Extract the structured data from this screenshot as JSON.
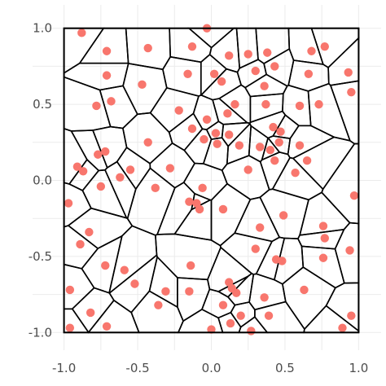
{
  "chart_data": {
    "type": "scatter",
    "title": "",
    "xlabel": "",
    "ylabel": "",
    "xlim": [
      -1.02,
      1.02
    ],
    "ylim": [
      -1.02,
      1.02
    ],
    "x_ticks": [
      -1.0,
      -0.5,
      0.0,
      0.5,
      1.0
    ],
    "y_ticks": [
      -1.0,
      -0.5,
      0.0,
      0.5,
      1.0
    ],
    "x_tick_labels": [
      "-1.0",
      "-0.5",
      "0.0",
      "0.5",
      "1.0"
    ],
    "y_tick_labels": [
      "-1.0",
      "-0.5",
      "0.0",
      "0.5",
      "1.0"
    ],
    "grid": true,
    "overlay": "voronoi tessellation of the points, clipped to the square [-1, 1]",
    "colors": {
      "points": "#F8766D",
      "edges": "#000000",
      "grid": "#ebebeb",
      "background": "#ffffff"
    },
    "points": [
      {
        "x": -0.03,
        "y": 1.0
      },
      {
        "x": -0.88,
        "y": 0.97
      },
      {
        "x": -0.71,
        "y": 0.85
      },
      {
        "x": -0.43,
        "y": 0.87
      },
      {
        "x": -0.13,
        "y": 0.88
      },
      {
        "x": 0.12,
        "y": 0.82
      },
      {
        "x": 0.25,
        "y": 0.83
      },
      {
        "x": 0.38,
        "y": 0.84
      },
      {
        "x": 0.68,
        "y": 0.85
      },
      {
        "x": 0.77,
        "y": 0.88
      },
      {
        "x": -0.71,
        "y": 0.69
      },
      {
        "x": -0.47,
        "y": 0.63
      },
      {
        "x": -0.16,
        "y": 0.7
      },
      {
        "x": 0.02,
        "y": 0.7
      },
      {
        "x": 0.07,
        "y": 0.65
      },
      {
        "x": 0.3,
        "y": 0.72
      },
      {
        "x": 0.43,
        "y": 0.75
      },
      {
        "x": 0.66,
        "y": 0.7
      },
      {
        "x": 0.93,
        "y": 0.71
      },
      {
        "x": 0.36,
        "y": 0.62
      },
      {
        "x": -0.78,
        "y": 0.49
      },
      {
        "x": -0.68,
        "y": 0.52
      },
      {
        "x": -0.22,
        "y": 0.46
      },
      {
        "x": -0.13,
        "y": 0.34
      },
      {
        "x": -0.05,
        "y": 0.27
      },
      {
        "x": 0.03,
        "y": 0.31
      },
      {
        "x": 0.12,
        "y": 0.3
      },
      {
        "x": 0.11,
        "y": 0.44
      },
      {
        "x": 0.16,
        "y": 0.5
      },
      {
        "x": 0.37,
        "y": 0.5
      },
      {
        "x": 0.42,
        "y": 0.35
      },
      {
        "x": 0.47,
        "y": 0.32
      },
      {
        "x": 0.6,
        "y": 0.49
      },
      {
        "x": 0.73,
        "y": 0.5
      },
      {
        "x": 0.95,
        "y": 0.58
      },
      {
        "x": -0.43,
        "y": 0.25
      },
      {
        "x": -0.03,
        "y": 0.4
      },
      {
        "x": -0.77,
        "y": 0.17
      },
      {
        "x": -0.72,
        "y": 0.19
      },
      {
        "x": -0.91,
        "y": 0.09
      },
      {
        "x": -0.87,
        "y": 0.06
      },
      {
        "x": -0.55,
        "y": 0.07
      },
      {
        "x": -0.62,
        "y": 0.02
      },
      {
        "x": -0.28,
        "y": 0.08
      },
      {
        "x": 0.04,
        "y": 0.24
      },
      {
        "x": 0.19,
        "y": 0.23
      },
      {
        "x": 0.33,
        "y": 0.22
      },
      {
        "x": 0.46,
        "y": 0.25
      },
      {
        "x": 0.4,
        "y": 0.2
      },
      {
        "x": 0.6,
        "y": 0.23
      },
      {
        "x": 0.65,
        "y": 0.13
      },
      {
        "x": 0.57,
        "y": 0.05
      },
      {
        "x": 0.43,
        "y": 0.13
      },
      {
        "x": 0.25,
        "y": 0.07
      },
      {
        "x": -0.06,
        "y": -0.05
      },
      {
        "x": -0.38,
        "y": -0.05
      },
      {
        "x": -0.15,
        "y": -0.14
      },
      {
        "x": -0.1,
        "y": -0.15
      },
      {
        "x": -0.08,
        "y": -0.19
      },
      {
        "x": 0.08,
        "y": -0.19
      },
      {
        "x": -0.75,
        "y": -0.04
      },
      {
        "x": -0.97,
        "y": -0.15
      },
      {
        "x": 0.49,
        "y": -0.23
      },
      {
        "x": 0.33,
        "y": -0.31
      },
      {
        "x": 0.76,
        "y": -0.3
      },
      {
        "x": 0.97,
        "y": -0.1
      },
      {
        "x": -0.83,
        "y": -0.34
      },
      {
        "x": -0.89,
        "y": -0.42
      },
      {
        "x": 0.3,
        "y": -0.45
      },
      {
        "x": 0.44,
        "y": -0.52
      },
      {
        "x": 0.48,
        "y": -0.53
      },
      {
        "x": 0.77,
        "y": -0.38
      },
      {
        "x": 0.76,
        "y": -0.51
      },
      {
        "x": 0.94,
        "y": -0.46
      },
      {
        "x": -0.72,
        "y": -0.56
      },
      {
        "x": -0.59,
        "y": -0.59
      },
      {
        "x": -0.14,
        "y": -0.56
      },
      {
        "x": -0.52,
        "y": -0.68
      },
      {
        "x": -0.31,
        "y": -0.73
      },
      {
        "x": -0.15,
        "y": -0.73
      },
      {
        "x": 0.12,
        "y": -0.67
      },
      {
        "x": 0.14,
        "y": -0.71
      },
      {
        "x": 0.17,
        "y": -0.74
      },
      {
        "x": 0.36,
        "y": -0.77
      },
      {
        "x": -0.96,
        "y": -0.72
      },
      {
        "x": -0.36,
        "y": -0.82
      },
      {
        "x": 0.08,
        "y": -0.82
      },
      {
        "x": 0.2,
        "y": -0.89
      },
      {
        "x": 0.39,
        "y": -0.89
      },
      {
        "x": 0.63,
        "y": -0.72
      },
      {
        "x": -0.82,
        "y": -0.87
      },
      {
        "x": -0.71,
        "y": -0.96
      },
      {
        "x": 0.13,
        "y": -0.94
      },
      {
        "x": 0.95,
        "y": -0.89
      },
      {
        "x": -0.96,
        "y": -0.97
      },
      {
        "x": 0.0,
        "y": -0.98
      },
      {
        "x": 0.27,
        "y": -0.99
      },
      {
        "x": 0.89,
        "y": -0.97
      }
    ]
  }
}
